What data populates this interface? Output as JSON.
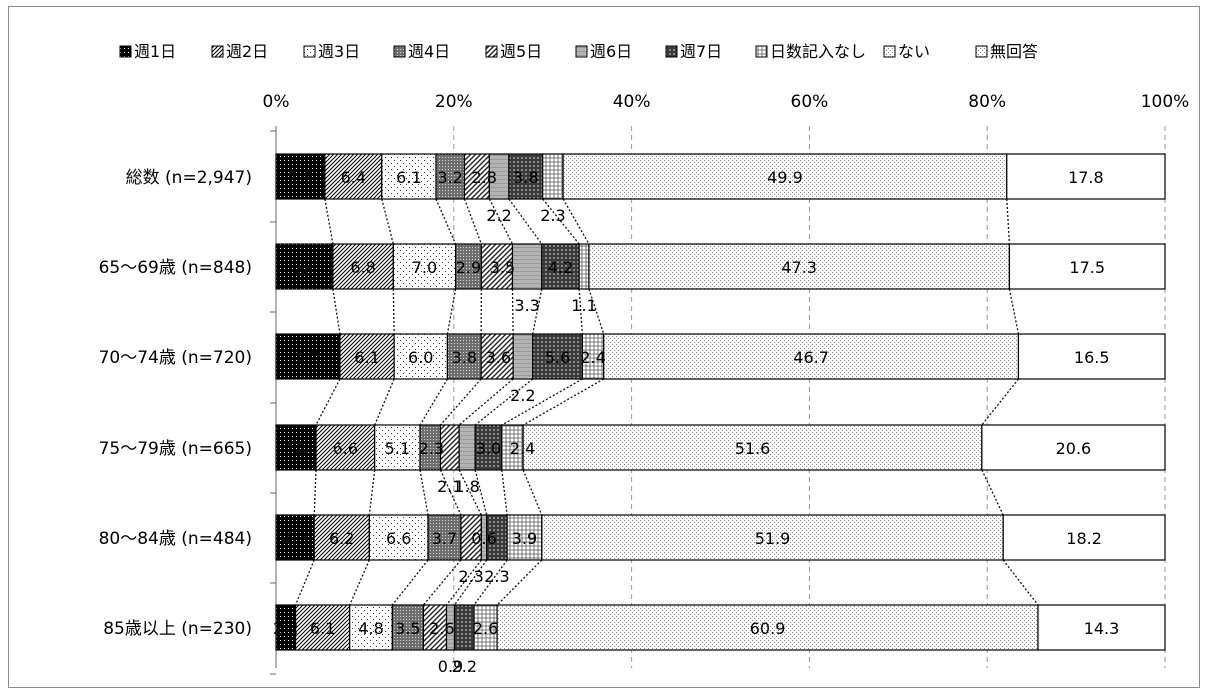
{
  "chart_data": {
    "type": "bar",
    "stacked": true,
    "orientation": "horizontal",
    "percent_stacked": true,
    "x_ticks": [
      "0%",
      "20%",
      "40%",
      "60%",
      "80%",
      "100%"
    ],
    "xlim": [
      0,
      100
    ],
    "legend_position": "top",
    "categories": [
      "総数 (n=2,947)",
      "65～69歳 (n=848)",
      "70～74歳 (n=720)",
      "75～79歳 (n=665)",
      "80～84歳 (n=484)",
      "85歳以上 (n=230)"
    ],
    "series": [
      {
        "name": "週1日",
        "values": [
          5.5,
          6.4,
          7.2,
          4.5,
          4.3,
          2.2
        ]
      },
      {
        "name": "週2日",
        "values": [
          6.4,
          6.8,
          6.1,
          6.6,
          6.2,
          6.1
        ]
      },
      {
        "name": "週3日",
        "values": [
          6.1,
          7.0,
          6.0,
          5.1,
          6.6,
          4.8
        ]
      },
      {
        "name": "週4日",
        "values": [
          3.2,
          2.9,
          3.8,
          2.3,
          3.7,
          3.5
        ]
      },
      {
        "name": "週5日",
        "values": [
          2.8,
          3.5,
          3.6,
          2.1,
          2.3,
          2.6
        ]
      },
      {
        "name": "週6日",
        "values": [
          2.2,
          3.3,
          2.2,
          1.8,
          0.6,
          0.9
        ]
      },
      {
        "name": "週7日",
        "values": [
          3.8,
          4.2,
          5.6,
          3.0,
          2.3,
          2.2
        ]
      },
      {
        "name": "日数記入なし",
        "values": [
          2.3,
          1.1,
          2.4,
          2.4,
          3.9,
          2.6
        ]
      },
      {
        "name": "ない",
        "values": [
          49.9,
          47.3,
          46.7,
          51.6,
          51.9,
          60.9
        ]
      },
      {
        "name": "無回答",
        "values": [
          17.8,
          17.5,
          16.5,
          20.6,
          18.2,
          14.3
        ]
      }
    ],
    "gridlines": true
  }
}
